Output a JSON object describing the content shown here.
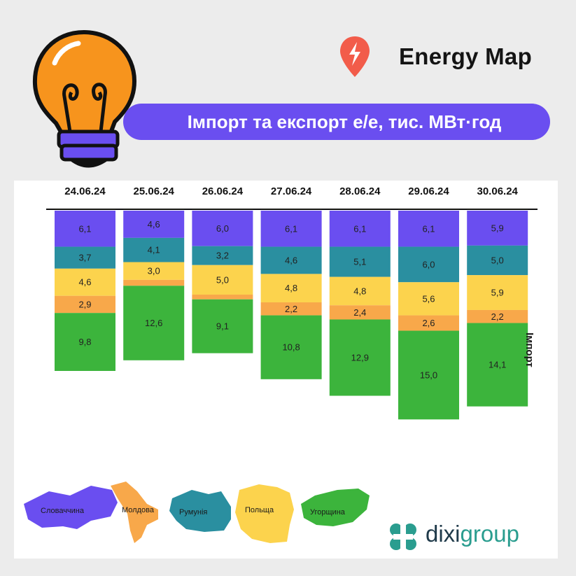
{
  "header": {
    "brand": "Energy Map",
    "title": "Імпорт та експорт е/е, тис. МВт·год"
  },
  "side_label": "Імпорт",
  "legend": [
    {
      "name": "Словаччина",
      "color": "#6a4ef0"
    },
    {
      "name": "Молдова",
      "color": "#f8a84a"
    },
    {
      "name": "Румунія",
      "color": "#2a8fa0"
    },
    {
      "name": "Польща",
      "color": "#fcd34d"
    },
    {
      "name": "Угорщина",
      "color": "#3cb43c"
    }
  ],
  "footer": {
    "logo_part1": "dixi",
    "logo_part2": "group"
  },
  "chart_data": {
    "type": "bar",
    "stacked": true,
    "categories": [
      "24.06.24",
      "25.06.24",
      "26.06.24",
      "27.06.24",
      "28.06.24",
      "29.06.24",
      "30.06.24"
    ],
    "series": [
      {
        "name": "Словаччина",
        "color": "#6a4ef0",
        "values": [
          6.1,
          4.6,
          6.0,
          6.1,
          6.1,
          6.1,
          5.9
        ],
        "labels": [
          "6,1",
          "4,6",
          "6,0",
          "6,1",
          "6,1",
          "6,1",
          "5,9"
        ]
      },
      {
        "name": "Румунія",
        "color": "#2a8fa0",
        "values": [
          3.7,
          4.1,
          3.2,
          4.6,
          5.1,
          6.0,
          5.0
        ],
        "labels": [
          "3,7",
          "4,1",
          "3,2",
          "4,6",
          "5,1",
          "6,0",
          "5,0"
        ]
      },
      {
        "name": "Польща",
        "color": "#fcd34d",
        "values": [
          4.6,
          3.0,
          5.0,
          4.8,
          4.8,
          5.6,
          5.9
        ],
        "labels": [
          "4,6",
          "3,0",
          "5,0",
          "4,8",
          "4,8",
          "5,6",
          "5,9"
        ]
      },
      {
        "name": "Молдова",
        "color": "#f8a84a",
        "values": [
          2.9,
          1.0,
          0.8,
          2.2,
          2.4,
          2.6,
          2.2
        ],
        "labels": [
          "2,9",
          "",
          "",
          "2,2",
          "2,4",
          "2,6",
          "2,2"
        ]
      },
      {
        "name": "Угорщина",
        "color": "#3cb43c",
        "values": [
          9.8,
          12.6,
          9.1,
          10.8,
          12.9,
          15.0,
          14.1
        ],
        "labels": [
          "9,8",
          "12,6",
          "9,1",
          "10,8",
          "12,9",
          "15,0",
          "14,1"
        ]
      }
    ],
    "orientation": "downward",
    "xaxis_position": "top",
    "grid": false
  }
}
